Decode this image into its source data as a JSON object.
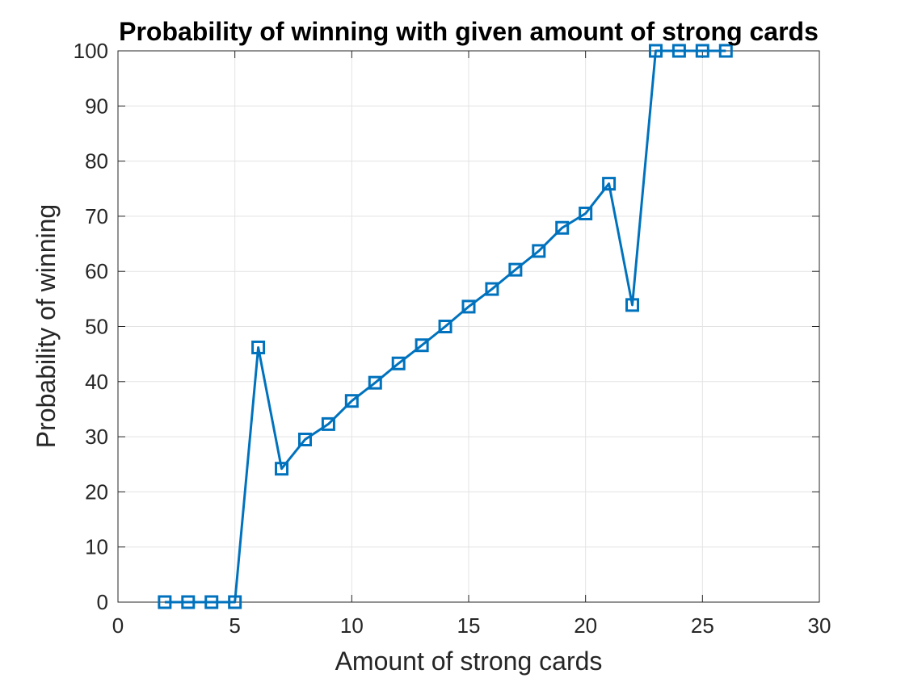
{
  "chart_data": {
    "type": "line",
    "title": "Probability of winning with given amount of strong cards",
    "xlabel": "Amount of strong cards",
    "ylabel": "Probability of winning",
    "xlim": [
      0,
      30
    ],
    "ylim": [
      0,
      100
    ],
    "xticks": [
      "0",
      "5",
      "10",
      "15",
      "20",
      "25",
      "30"
    ],
    "yticks": [
      "0",
      "10",
      "20",
      "30",
      "40",
      "50",
      "60",
      "70",
      "80",
      "90",
      "100"
    ],
    "grid": true,
    "marker": "square",
    "line_color": "#0072BD",
    "x": [
      2,
      3,
      4,
      5,
      6,
      7,
      8,
      9,
      10,
      11,
      12,
      13,
      14,
      15,
      16,
      17,
      18,
      19,
      20,
      21,
      22,
      23,
      24,
      25,
      26
    ],
    "series": [
      {
        "values": [
          0,
          0,
          0,
          0,
          46.2,
          24.2,
          29.5,
          32.3,
          36.5,
          39.8,
          43.3,
          46.6,
          50.0,
          53.6,
          56.8,
          60.3,
          63.7,
          67.9,
          70.5,
          75.9,
          53.9,
          100,
          100,
          100,
          100
        ]
      }
    ]
  }
}
